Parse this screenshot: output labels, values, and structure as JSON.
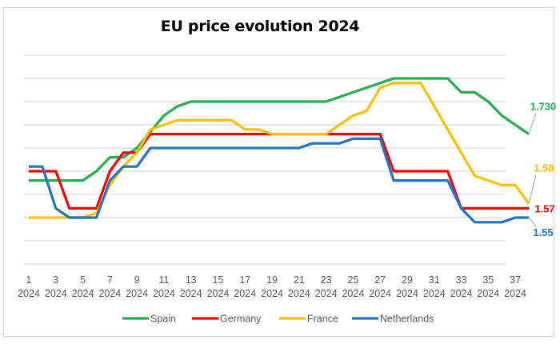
{
  "chart_data": {
    "type": "line",
    "title": "EU price evolution 2024",
    "xlabel": "",
    "ylabel": "",
    "x": [
      1,
      2,
      3,
      4,
      5,
      6,
      7,
      8,
      9,
      10,
      11,
      12,
      13,
      14,
      15,
      16,
      17,
      18,
      19,
      20,
      21,
      22,
      23,
      24,
      25,
      26,
      27,
      28,
      29,
      30,
      31,
      32,
      33,
      34,
      35,
      36,
      37,
      38
    ],
    "x_tick_labels": [
      [
        "1",
        "2024"
      ],
      [
        "3",
        "2024"
      ],
      [
        "5",
        "2024"
      ],
      [
        "7",
        "2024"
      ],
      [
        "9",
        "2024"
      ],
      [
        "11",
        "2024"
      ],
      [
        "13",
        "2024"
      ],
      [
        "15",
        "2024"
      ],
      [
        "17",
        "2024"
      ],
      [
        "19",
        "2024"
      ],
      [
        "21",
        "2024"
      ],
      [
        "23",
        "2024"
      ],
      [
        "25",
        "2024"
      ],
      [
        "27",
        "2024"
      ],
      [
        "29",
        "2024"
      ],
      [
        "31",
        "2024"
      ],
      [
        "33",
        "2024"
      ],
      [
        "35",
        "2024"
      ],
      [
        "37",
        "2024"
      ]
    ],
    "x_tick_weeks": [
      1,
      3,
      5,
      7,
      9,
      11,
      13,
      15,
      17,
      19,
      21,
      23,
      25,
      27,
      29,
      31,
      33,
      35,
      37
    ],
    "ylim": [
      1.45,
      1.9
    ],
    "y_gridlines": [
      1.45,
      1.5,
      1.55,
      1.6,
      1.65,
      1.7,
      1.75,
      1.8,
      1.85,
      1.9
    ],
    "y_tick_labels_shown": false,
    "grid": true,
    "legend_position": "bottom",
    "series": [
      {
        "name": "Spain",
        "color": "#22b14c",
        "values": [
          1.63,
          1.63,
          1.63,
          1.63,
          1.63,
          1.65,
          1.68,
          1.68,
          1.7,
          1.735,
          1.77,
          1.79,
          1.8,
          1.8,
          1.8,
          1.8,
          1.8,
          1.8,
          1.8,
          1.8,
          1.8,
          1.8,
          1.8,
          1.81,
          1.82,
          1.83,
          1.84,
          1.85,
          1.85,
          1.85,
          1.85,
          1.85,
          1.82,
          1.82,
          1.8,
          1.77,
          1.75,
          1.73
        ],
        "end_label": "1.730"
      },
      {
        "name": "Germany",
        "color": "#ff0000",
        "values": [
          1.65,
          1.65,
          1.65,
          1.57,
          1.57,
          1.57,
          1.65,
          1.69,
          1.69,
          1.73,
          1.73,
          1.73,
          1.73,
          1.73,
          1.73,
          1.73,
          1.73,
          1.73,
          1.73,
          1.73,
          1.73,
          1.73,
          1.73,
          1.73,
          1.73,
          1.73,
          1.73,
          1.65,
          1.65,
          1.65,
          1.65,
          1.65,
          1.57,
          1.57,
          1.57,
          1.57,
          1.57,
          1.57
        ],
        "end_label": "1.57"
      },
      {
        "name": "France",
        "color": "#ffc000",
        "values": [
          1.55,
          1.55,
          1.55,
          1.55,
          1.55,
          1.56,
          1.62,
          1.66,
          1.69,
          1.74,
          1.75,
          1.76,
          1.76,
          1.76,
          1.76,
          1.76,
          1.74,
          1.74,
          1.73,
          1.73,
          1.73,
          1.73,
          1.73,
          1.75,
          1.77,
          1.78,
          1.83,
          1.84,
          1.84,
          1.84,
          1.79,
          1.74,
          1.69,
          1.64,
          1.63,
          1.62,
          1.62,
          1.58
        ],
        "end_label": "1.58"
      },
      {
        "name": "Netherlands",
        "color": "#1f77c4",
        "values": [
          1.66,
          1.66,
          1.57,
          1.55,
          1.55,
          1.55,
          1.63,
          1.66,
          1.66,
          1.7,
          1.7,
          1.7,
          1.7,
          1.7,
          1.7,
          1.7,
          1.7,
          1.7,
          1.7,
          1.7,
          1.7,
          1.71,
          1.71,
          1.71,
          1.72,
          1.72,
          1.72,
          1.63,
          1.63,
          1.63,
          1.63,
          1.63,
          1.57,
          1.54,
          1.54,
          1.54,
          1.55,
          1.55
        ],
        "end_label": "1.55"
      }
    ]
  }
}
